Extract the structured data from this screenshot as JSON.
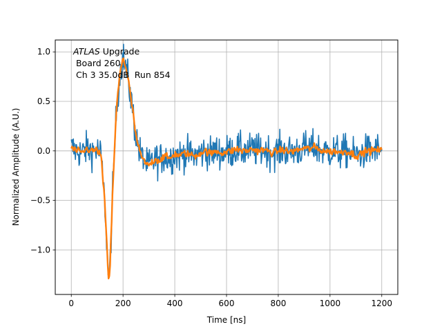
{
  "chart_data": {
    "type": "line",
    "xlabel": "Time [ns]",
    "ylabel": "Normalized Amplitude (A.U.)",
    "xlim": [
      -62,
      1262
    ],
    "ylim": [
      -1.45,
      1.12
    ],
    "grid": true,
    "x_ticks": [
      0,
      200,
      400,
      600,
      800,
      1000,
      1200
    ],
    "x_tick_labels": [
      "0",
      "200",
      "400",
      "600",
      "800",
      "1000",
      "1200"
    ],
    "y_ticks": [
      -1.0,
      -0.5,
      0.0,
      0.5,
      1.0
    ],
    "y_tick_labels": [
      "−1.0",
      "−0.5",
      "0.0",
      "0.5",
      "1.0"
    ],
    "annotation": {
      "line1_italic": "ATLAS",
      "line1_rest": " Upgrade",
      "line2": " Board 260",
      "line3": " Ch 3 35.0dB  Run 854"
    },
    "series": [
      {
        "color": "#1f77b4",
        "style": "noisy",
        "x": [
          0,
          20,
          40,
          60,
          80,
          100,
          115,
          130,
          140,
          145,
          150,
          160,
          175,
          190,
          200,
          205,
          210,
          220,
          235,
          250,
          265,
          280,
          295,
          310,
          325,
          340,
          360,
          380,
          400,
          420,
          440,
          460,
          480,
          500,
          520,
          540,
          560,
          580,
          600,
          620,
          640,
          660,
          680,
          700,
          720,
          740,
          760,
          780,
          800,
          820,
          840,
          860,
          880,
          900,
          920,
          940,
          960,
          980,
          1000,
          1020,
          1040,
          1060,
          1080,
          1100,
          1120,
          1140,
          1160,
          1180,
          1200
        ],
        "y": [
          0.03,
          0.0,
          -0.02,
          0.02,
          0.0,
          0.01,
          -0.05,
          -0.55,
          -1.1,
          -1.32,
          -1.15,
          -0.4,
          0.45,
          0.82,
          0.95,
          0.9,
          0.85,
          0.72,
          0.45,
          0.15,
          -0.02,
          -0.1,
          -0.15,
          -0.12,
          -0.08,
          -0.1,
          -0.05,
          -0.08,
          -0.03,
          -0.05,
          -0.02,
          -0.04,
          -0.05,
          -0.02,
          0.0,
          -0.03,
          0.0,
          -0.02,
          -0.01,
          0.0,
          0.02,
          0.0,
          0.0,
          0.02,
          0.0,
          0.01,
          0.0,
          -0.02,
          0.0,
          0.01,
          -0.01,
          0.0,
          0.01,
          0.03,
          0.02,
          0.04,
          0.01,
          0.0,
          -0.01,
          0.0,
          -0.02,
          0.0,
          -0.02,
          -0.05,
          -0.03,
          0.0,
          0.0,
          0.01,
          0.0
        ]
      },
      {
        "color": "#ff7f0e",
        "style": "smooth",
        "x": [
          0,
          20,
          40,
          60,
          80,
          100,
          115,
          130,
          140,
          145,
          150,
          160,
          175,
          190,
          200,
          205,
          210,
          220,
          235,
          250,
          265,
          280,
          295,
          310,
          325,
          340,
          360,
          380,
          400,
          420,
          440,
          460,
          480,
          500,
          520,
          540,
          560,
          580,
          600,
          620,
          640,
          660,
          680,
          700,
          720,
          740,
          760,
          780,
          800,
          820,
          840,
          860,
          880,
          900,
          920,
          940,
          960,
          980,
          1000,
          1020,
          1040,
          1060,
          1080,
          1100,
          1120,
          1140,
          1160,
          1180,
          1200
        ],
        "y": [
          0.03,
          0.0,
          -0.02,
          0.02,
          0.0,
          0.01,
          -0.05,
          -0.55,
          -1.1,
          -1.32,
          -1.15,
          -0.4,
          0.45,
          0.82,
          0.95,
          0.9,
          0.85,
          0.72,
          0.45,
          0.15,
          -0.02,
          -0.1,
          -0.15,
          -0.12,
          -0.08,
          -0.1,
          -0.05,
          -0.08,
          -0.03,
          -0.05,
          -0.02,
          -0.04,
          -0.05,
          -0.02,
          0.0,
          -0.03,
          0.0,
          -0.02,
          -0.01,
          0.0,
          0.02,
          0.0,
          0.0,
          0.02,
          0.0,
          0.01,
          0.0,
          -0.02,
          0.0,
          0.01,
          -0.01,
          0.0,
          0.01,
          0.03,
          0.02,
          0.04,
          0.01,
          0.0,
          -0.01,
          0.0,
          -0.02,
          0.0,
          -0.02,
          -0.05,
          -0.03,
          0.0,
          0.0,
          0.01,
          0.0
        ]
      }
    ]
  }
}
